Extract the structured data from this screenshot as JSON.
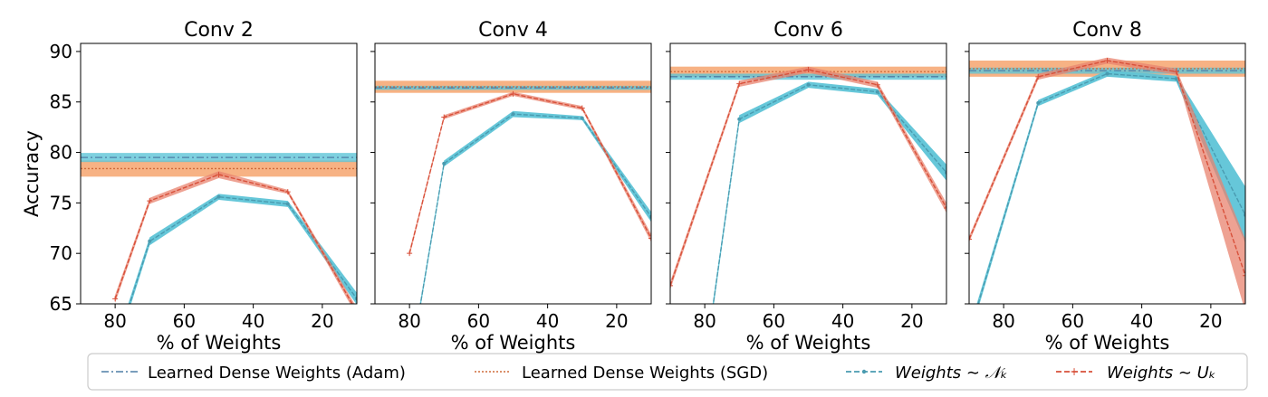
{
  "chart_data": [
    {
      "type": "line",
      "title": "Conv 2",
      "xlabel": "% of Weights",
      "ylabel": "Accuracy",
      "xlim": [
        90,
        10
      ],
      "ylim": [
        65,
        90.8
      ],
      "x_ticks": [
        80,
        60,
        40,
        20
      ],
      "y_ticks": [
        65,
        70,
        75,
        80,
        85,
        90
      ],
      "baselines": {
        "adam": {
          "value": 79.5,
          "band": [
            79.05,
            79.95
          ]
        },
        "sgd": {
          "value": 78.4,
          "band": [
            77.6,
            79.2
          ]
        }
      },
      "series": [
        {
          "name": "normal",
          "x": [
            80,
            70,
            50,
            30,
            10
          ],
          "y": [
            60.5,
            71.2,
            75.6,
            74.9,
            65.5
          ],
          "spread": [
            0.5,
            0.4,
            0.3,
            0.3,
            0.6
          ]
        },
        {
          "name": "uniform",
          "x": [
            80,
            70,
            50,
            30,
            10
          ],
          "y": [
            65.5,
            75.2,
            77.8,
            76.1,
            64.2
          ],
          "spread": [
            0.4,
            0.3,
            0.35,
            0.2,
            0.4
          ]
        }
      ]
    },
    {
      "type": "line",
      "title": "Conv 4",
      "xlabel": "% of Weights",
      "xlim": [
        90,
        10
      ],
      "ylim": [
        65,
        90.8
      ],
      "x_ticks": [
        80,
        60,
        40,
        20
      ],
      "baselines": {
        "adam": {
          "value": 86.4,
          "band": [
            86.2,
            86.6
          ]
        },
        "sgd": {
          "value": 86.5,
          "band": [
            85.9,
            87.1
          ]
        }
      },
      "series": [
        {
          "name": "normal",
          "x": [
            80,
            70,
            50,
            30,
            10
          ],
          "y": [
            58.5,
            78.9,
            83.8,
            83.4,
            73.6
          ],
          "spread": [
            0.4,
            0.3,
            0.3,
            0.2,
            0.5
          ]
        },
        {
          "name": "uniform",
          "x": [
            80,
            70,
            50,
            30,
            10
          ],
          "y": [
            70.0,
            83.5,
            85.8,
            84.4,
            71.5
          ],
          "spread": [
            0.3,
            0.2,
            0.2,
            0.2,
            0.4
          ]
        }
      ]
    },
    {
      "type": "line",
      "title": "Conv 6",
      "xlabel": "% of Weights",
      "xlim": [
        90,
        10
      ],
      "ylim": [
        65,
        90.8
      ],
      "x_ticks": [
        80,
        60,
        40,
        20
      ],
      "baselines": {
        "adam": {
          "value": 87.5,
          "band": [
            87.2,
            87.8
          ]
        },
        "sgd": {
          "value": 88.0,
          "band": [
            87.5,
            88.5
          ]
        }
      },
      "series": [
        {
          "name": "normal",
          "x": [
            80,
            70,
            50,
            30,
            10
          ],
          "y": [
            59.0,
            83.3,
            86.7,
            86.0,
            78.0
          ],
          "spread": [
            0.5,
            0.4,
            0.3,
            0.3,
            0.8
          ]
        },
        {
          "name": "uniform",
          "x": [
            90,
            70,
            50,
            30,
            10
          ],
          "y": [
            66.8,
            86.8,
            88.2,
            86.7,
            74.5
          ],
          "spread": [
            0.4,
            0.3,
            0.3,
            0.3,
            0.5
          ]
        }
      ]
    },
    {
      "type": "line",
      "title": "Conv 8",
      "xlabel": "% of Weights",
      "xlim": [
        90,
        10
      ],
      "ylim": [
        65,
        90.8
      ],
      "x_ticks": [
        80,
        60,
        40,
        20
      ],
      "baselines": {
        "adam": {
          "value": 88.1,
          "band": [
            87.8,
            88.4
          ]
        },
        "sgd": {
          "value": 88.3,
          "band": [
            87.5,
            89.1
          ]
        }
      },
      "series": [
        {
          "name": "normal",
          "x": [
            90,
            70,
            50,
            30,
            10
          ],
          "y": [
            62.0,
            84.9,
            87.8,
            87.3,
            73.8
          ],
          "spread": [
            0.5,
            0.3,
            0.3,
            0.3,
            2.8
          ]
        },
        {
          "name": "uniform",
          "x": [
            90,
            70,
            50,
            30,
            10
          ],
          "y": [
            71.4,
            87.5,
            89.1,
            88.0,
            67.8
          ],
          "spread": [
            0.3,
            0.3,
            0.3,
            0.3,
            3.6
          ]
        }
      ]
    }
  ],
  "legend": {
    "adam_label": "Learned Dense Weights (Adam)",
    "sgd_label": "Learned Dense Weights (SGD)",
    "normal_label": "Weights ∼ 𝒩ₖ",
    "uniform_label": "Weights ∼ Uₖ"
  },
  "colors": {
    "normal": "#5ec4d7",
    "normal_line": "#4a9bb0",
    "uniform": "#d8503a",
    "uniform_band": "#e8836f",
    "adam": "#4f7ea5",
    "adam_band": "#5ec4d7",
    "sgd": "#cf6b3a",
    "sgd_band": "#f6a56e"
  }
}
